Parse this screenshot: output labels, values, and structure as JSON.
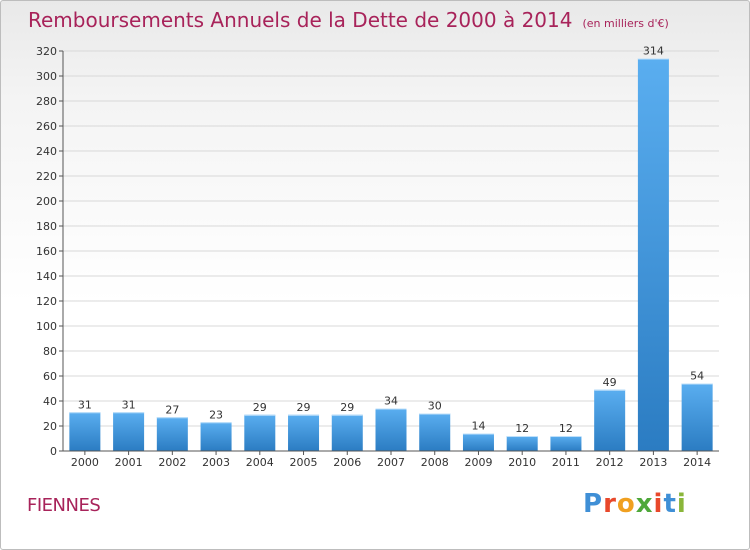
{
  "title": "Remboursements Annuels de la Dette de 2000 à 2014",
  "unit": "(en milliers d'€)",
  "place": "FIENNES",
  "logo": "Proxiti",
  "colors": {
    "title": "#a8235a",
    "bar_light": "#5aaef0",
    "bar_dark": "#2b7cc2",
    "grid": "#d8d8d8"
  },
  "chart_data": {
    "type": "bar",
    "categories": [
      "2000",
      "2001",
      "2002",
      "2003",
      "2004",
      "2005",
      "2006",
      "2007",
      "2008",
      "2009",
      "2010",
      "2011",
      "2012",
      "2013",
      "2014"
    ],
    "values": [
      31,
      31,
      27,
      23,
      29,
      29,
      29,
      34,
      30,
      14,
      12,
      12,
      49,
      314,
      54
    ],
    "ylim": [
      0,
      320
    ],
    "yticks": [
      0,
      20,
      40,
      60,
      80,
      100,
      120,
      140,
      160,
      180,
      200,
      220,
      240,
      260,
      280,
      300,
      320
    ],
    "grid": true,
    "data_labels": true
  }
}
